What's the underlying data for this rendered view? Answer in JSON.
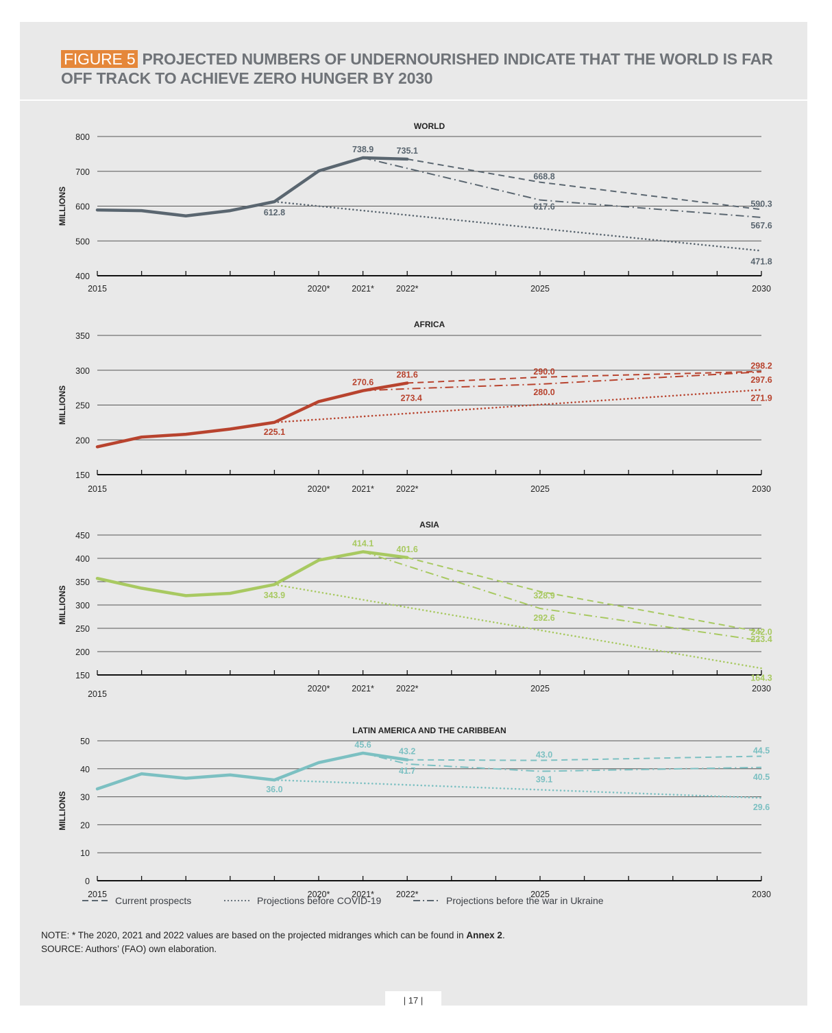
{
  "header": {
    "figure_label": "FIGURE 5",
    "title": "PROJECTED NUMBERS OF UNDERNOURISHED INDICATE THAT THE WORLD IS FAR OFF TRACK TO ACHIEVE ZERO HUNGER BY 2030"
  },
  "colors": {
    "world": "#5a6670",
    "africa": "#b8432e",
    "asia": "#a8c961",
    "latin_america": "#7cc0c2",
    "figure_label": "#e5873a",
    "panel_background": "#e9e9e9"
  },
  "chart_data": [
    {
      "type": "line",
      "title": "WORLD",
      "ylabel": "MILLIONS",
      "ylim": [
        400,
        800
      ],
      "yticks": [
        400,
        500,
        600,
        700,
        800
      ],
      "xlim": [
        2015,
        2030
      ],
      "x_tick_labels": [
        {
          "x": 2015,
          "label": "2015"
        },
        {
          "x": 2020,
          "label": "2020*"
        },
        {
          "x": 2021,
          "label": "2021*"
        },
        {
          "x": 2022,
          "label": "2022*"
        },
        {
          "x": 2025,
          "label": "2025"
        },
        {
          "x": 2030,
          "label": "2030"
        }
      ],
      "color": "#5a6670",
      "historical": {
        "x": [
          2015,
          2016,
          2017,
          2018,
          2019,
          2020,
          2021,
          2022
        ],
        "y": [
          589,
          587,
          572,
          587,
          612.8,
          701,
          738.9,
          735.1
        ]
      },
      "series": [
        {
          "name": "Current prospects",
          "style": "dashed",
          "x": [
            2022,
            2025,
            2030
          ],
          "y": [
            735.1,
            668.8,
            590.3
          ]
        },
        {
          "name": "Projections before the war in Ukraine",
          "style": "dashdot",
          "x": [
            2021,
            2025,
            2030
          ],
          "y": [
            738.9,
            617.6,
            567.6
          ]
        },
        {
          "name": "Projections before COVID-19",
          "style": "dotted",
          "x": [
            2019,
            2030
          ],
          "y": [
            612.8,
            471.8
          ]
        }
      ],
      "labels": [
        {
          "x": 2019,
          "y": 612.8,
          "text": "612.8"
        },
        {
          "x": 2021,
          "y": 738.9,
          "text": "738.9"
        },
        {
          "x": 2022,
          "y": 735.1,
          "text": "735.1"
        },
        {
          "x": 2025,
          "y": 668.8,
          "text": "668.8"
        },
        {
          "x": 2025,
          "y": 617.6,
          "text": "617.6"
        },
        {
          "x": 2030,
          "y": 590.3,
          "text": "590.3"
        },
        {
          "x": 2030,
          "y": 567.6,
          "text": "567.6"
        },
        {
          "x": 2030,
          "y": 471.8,
          "text": "471.8"
        }
      ]
    },
    {
      "type": "line",
      "title": "AFRICA",
      "ylabel": "MILLIONS",
      "ylim": [
        150,
        350
      ],
      "yticks": [
        150,
        200,
        250,
        300,
        350
      ],
      "xlim": [
        2015,
        2030
      ],
      "x_tick_labels": [
        {
          "x": 2015,
          "label": "2015"
        },
        {
          "x": 2020,
          "label": "2020*"
        },
        {
          "x": 2021,
          "label": "2021*"
        },
        {
          "x": 2022,
          "label": "2022*"
        },
        {
          "x": 2025,
          "label": "2025"
        },
        {
          "x": 2030,
          "label": "2030"
        }
      ],
      "color": "#b8432e",
      "historical": {
        "x": [
          2015,
          2016,
          2017,
          2018,
          2019,
          2020,
          2021,
          2022
        ],
        "y": [
          190,
          204,
          208,
          215.5,
          225.1,
          255,
          270.6,
          281.6
        ]
      },
      "series": [
        {
          "name": "Current prospects",
          "style": "dashed",
          "x": [
            2022,
            2025,
            2030
          ],
          "y": [
            281.6,
            290.0,
            298.2
          ]
        },
        {
          "name": "Projections before the war in Ukraine",
          "style": "dashdot",
          "x": [
            2021,
            2022,
            2025,
            2030
          ],
          "y": [
            270.6,
            273.4,
            280.0,
            297.6
          ]
        },
        {
          "name": "Projections before COVID-19",
          "style": "dotted",
          "x": [
            2019,
            2030
          ],
          "y": [
            225.1,
            271.9
          ]
        }
      ],
      "labels": [
        {
          "x": 2019,
          "y": 225.1,
          "text": "225.1"
        },
        {
          "x": 2021,
          "y": 270.6,
          "text": "270.6"
        },
        {
          "x": 2022,
          "y": 281.6,
          "text": "281.6"
        },
        {
          "x": 2022,
          "y": 273.4,
          "text": "273.4"
        },
        {
          "x": 2025,
          "y": 290.0,
          "text": "290.0"
        },
        {
          "x": 2025,
          "y": 280.0,
          "text": "280.0"
        },
        {
          "x": 2030,
          "y": 298.2,
          "text": "298.2"
        },
        {
          "x": 2030,
          "y": 297.6,
          "text": "297.6"
        },
        {
          "x": 2030,
          "y": 271.9,
          "text": "271.9"
        }
      ]
    },
    {
      "type": "line",
      "title": "ASIA",
      "ylabel": "MILLIONS",
      "ylim": [
        150,
        450
      ],
      "yticks": [
        150,
        200,
        250,
        300,
        350,
        400,
        450
      ],
      "xlim": [
        2015,
        2030
      ],
      "x_tick_labels": [
        {
          "x": 2015,
          "label": "2015"
        },
        {
          "x": 2020,
          "label": "2020*"
        },
        {
          "x": 2021,
          "label": "2021*"
        },
        {
          "x": 2022,
          "label": "2022*"
        },
        {
          "x": 2025,
          "label": "2025"
        },
        {
          "x": 2030,
          "label": "2030"
        }
      ],
      "color": "#a8c961",
      "historical": {
        "x": [
          2015,
          2016,
          2017,
          2018,
          2019,
          2020,
          2021,
          2022
        ],
        "y": [
          357,
          336,
          320,
          325,
          343.9,
          396,
          414.1,
          401.6
        ]
      },
      "series": [
        {
          "name": "Current prospects",
          "style": "dashed",
          "x": [
            2022,
            2025,
            2030
          ],
          "y": [
            401.6,
            328.9,
            242.0
          ]
        },
        {
          "name": "Projections before the war in Ukraine",
          "style": "dashdot",
          "x": [
            2021,
            2025,
            2030
          ],
          "y": [
            414.1,
            292.6,
            223.4
          ]
        },
        {
          "name": "Projections before COVID-19",
          "style": "dotted",
          "x": [
            2019,
            2030
          ],
          "y": [
            343.9,
            164.3
          ]
        }
      ],
      "labels": [
        {
          "x": 2019,
          "y": 343.9,
          "text": "343.9"
        },
        {
          "x": 2021,
          "y": 414.1,
          "text": "414.1"
        },
        {
          "x": 2022,
          "y": 401.6,
          "text": "401.6"
        },
        {
          "x": 2025,
          "y": 328.9,
          "text": "328.9"
        },
        {
          "x": 2025,
          "y": 292.6,
          "text": "292.6"
        },
        {
          "x": 2030,
          "y": 242.0,
          "text": "242.0"
        },
        {
          "x": 2030,
          "y": 223.4,
          "text": "223.4"
        },
        {
          "x": 2030,
          "y": 164.3,
          "text": "164.3"
        }
      ]
    },
    {
      "type": "line",
      "title": "LATIN AMERICA AND THE CARIBBEAN",
      "ylabel": "MILLIONS",
      "ylim": [
        0,
        50
      ],
      "yticks": [
        0,
        10,
        20,
        30,
        40,
        50
      ],
      "xlim": [
        2015,
        2030
      ],
      "x_tick_labels": [
        {
          "x": 2015,
          "label": "2015"
        },
        {
          "x": 2020,
          "label": "2020*"
        },
        {
          "x": 2021,
          "label": "2021*"
        },
        {
          "x": 2022,
          "label": "2022*"
        },
        {
          "x": 2025,
          "label": "2025"
        },
        {
          "x": 2030,
          "label": "2030"
        }
      ],
      "color": "#7cc0c2",
      "historical": {
        "x": [
          2015,
          2016,
          2017,
          2018,
          2019,
          2020,
          2021,
          2022
        ],
        "y": [
          32.8,
          38.2,
          36.6,
          37.8,
          36.0,
          42.2,
          45.6,
          43.2
        ]
      },
      "series": [
        {
          "name": "Current prospects",
          "style": "dashed",
          "x": [
            2022,
            2025,
            2030
          ],
          "y": [
            43.2,
            43.0,
            44.5
          ]
        },
        {
          "name": "Projections before the war in Ukraine",
          "style": "dashdot",
          "x": [
            2021,
            2022,
            2025,
            2030
          ],
          "y": [
            45.6,
            41.7,
            39.1,
            40.5
          ]
        },
        {
          "name": "Projections before COVID-19",
          "style": "dotted",
          "x": [
            2019,
            2030
          ],
          "y": [
            36.0,
            29.6
          ]
        }
      ],
      "labels": [
        {
          "x": 2019,
          "y": 36.0,
          "text": "36.0"
        },
        {
          "x": 2021,
          "y": 45.6,
          "text": "45.6"
        },
        {
          "x": 2022,
          "y": 43.2,
          "text": "43.2"
        },
        {
          "x": 2022,
          "y": 41.7,
          "text": "41.7"
        },
        {
          "x": 2025,
          "y": 43.0,
          "text": "43.0"
        },
        {
          "x": 2025,
          "y": 39.1,
          "text": "39.1"
        },
        {
          "x": 2030,
          "y": 44.5,
          "text": "44.5"
        },
        {
          "x": 2030,
          "y": 40.5,
          "text": "40.5"
        },
        {
          "x": 2030,
          "y": 29.6,
          "text": "29.6"
        }
      ]
    }
  ],
  "legend": [
    {
      "label": "Current prospects",
      "style": "dashed"
    },
    {
      "label": "Projections before COVID-19",
      "style": "dotted"
    },
    {
      "label": "Projections before the war in Ukraine",
      "style": "dashdot"
    }
  ],
  "footer": {
    "note_prefix": "NOTE: * The 2020, 2021 and 2022 values are based on the projected midranges which can be found in ",
    "note_link": "Annex 2",
    "note_suffix": ".",
    "source": "SOURCE: Authors’ (FAO) own elaboration.",
    "page_number": "| 17 |"
  }
}
